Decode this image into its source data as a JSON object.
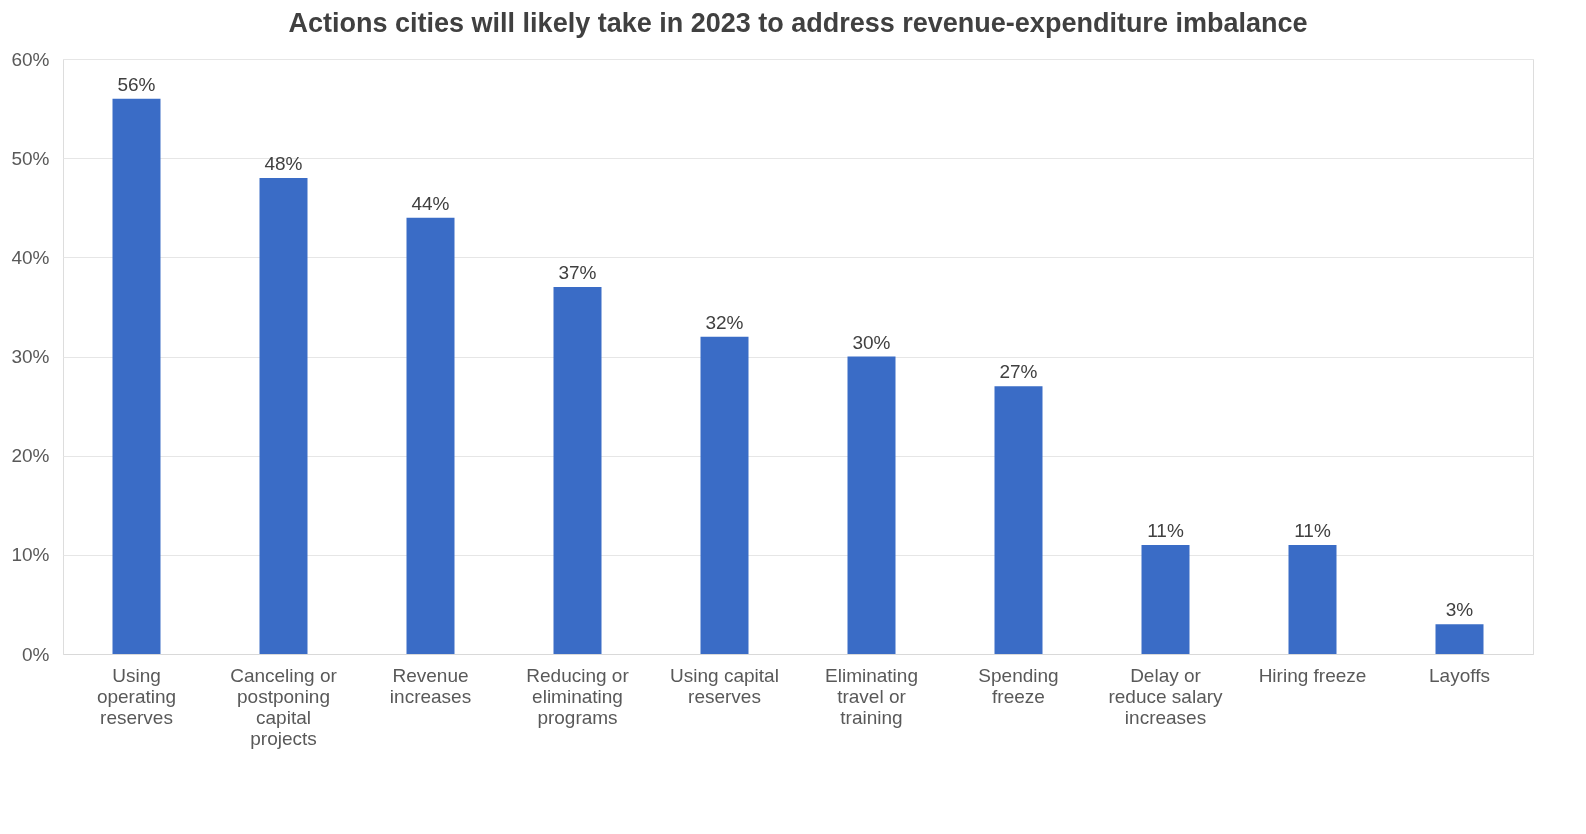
{
  "chart_data": {
    "type": "bar",
    "title": "Actions cities will likely take in 2023 to address revenue-expenditure imbalance",
    "categories": [
      "Using operating reserves",
      "Canceling or postponing capital projects",
      "Revenue increases",
      "Reducing or eliminating programs",
      "Using capital reserves",
      "Eliminating travel or training",
      "Spending freeze",
      "Delay or reduce salary increases",
      "Hiring freeze",
      "Layoffs"
    ],
    "values": [
      56,
      48,
      44,
      37,
      32,
      30,
      27,
      11,
      11,
      3
    ],
    "value_labels": [
      "56%",
      "48%",
      "44%",
      "37%",
      "32%",
      "30%",
      "27%",
      "11%",
      "11%",
      "3%"
    ],
    "color": "#3a6cc6",
    "ylim": [
      0,
      60
    ],
    "yticks": [
      {
        "value": 0,
        "label": "0%"
      },
      {
        "value": 10,
        "label": "10%"
      },
      {
        "value": 20,
        "label": "20%"
      },
      {
        "value": 30,
        "label": "30%"
      },
      {
        "value": 40,
        "label": "40%"
      },
      {
        "value": 50,
        "label": "50%"
      },
      {
        "value": 60,
        "label": "60%"
      }
    ],
    "grid": "y"
  }
}
